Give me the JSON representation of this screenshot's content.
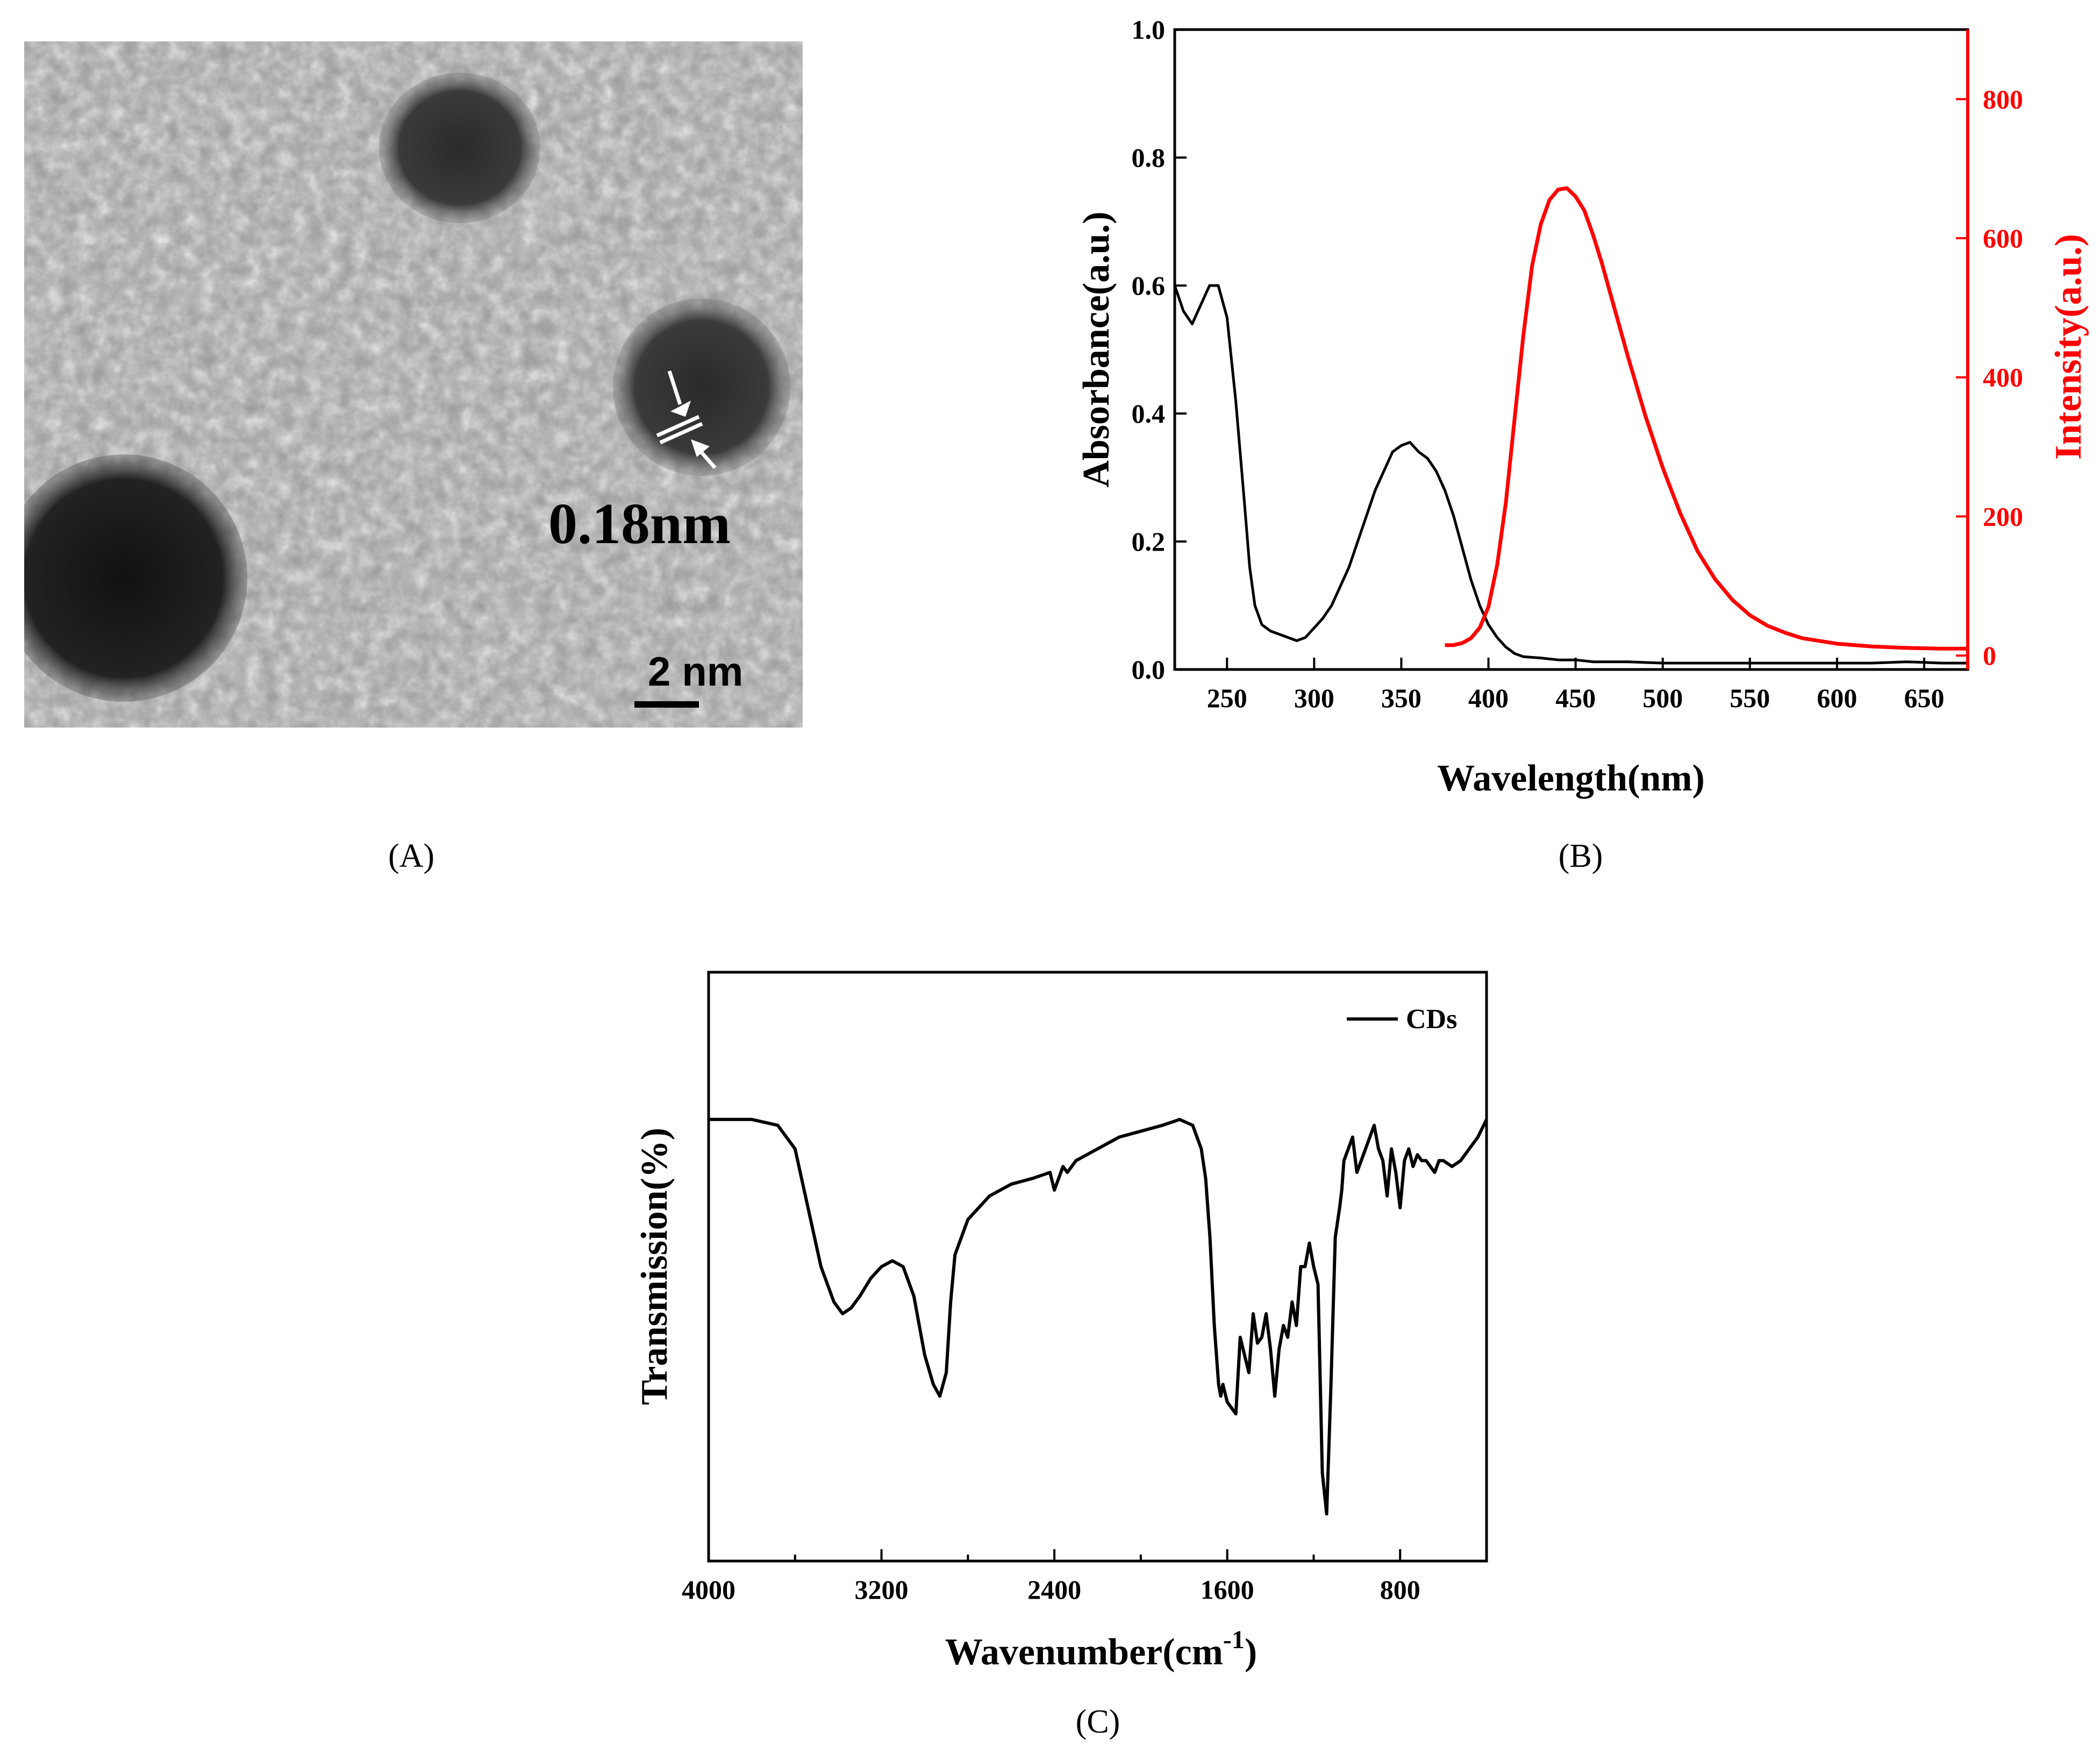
{
  "figure": {
    "panel_labels": [
      "(A)",
      "(B)",
      "(C)"
    ]
  },
  "panel_a": {
    "type": "TEM micrograph",
    "lattice_spacing_label": "0.18nm",
    "scale_bar_label": "2 nm"
  },
  "colors": {
    "absorbance": "#000000",
    "intensity": "#ff0000",
    "ftir": "#000000"
  },
  "chart_data": [
    {
      "id": "B",
      "type": "line",
      "xlabel": "Wavelength(nm)",
      "xlim": [
        220,
        675
      ],
      "x_ticks": [
        250,
        300,
        350,
        400,
        450,
        500,
        550,
        600,
        650
      ],
      "y_left": {
        "label": "Absorbance(a.u.)",
        "lim": [
          0,
          1.0
        ],
        "ticks": [
          "0.0",
          "0.2",
          "0.4",
          "0.6",
          "0.8",
          "1.0"
        ]
      },
      "y_right": {
        "label": "Intensity(a.u.)",
        "lim": [
          -20,
          900
        ],
        "ticks": [
          "0",
          "200",
          "400",
          "600",
          "800"
        ]
      },
      "series": [
        {
          "axis": "left",
          "color": "#000000",
          "x": [
            220,
            225,
            230,
            235,
            240,
            245,
            250,
            255,
            260,
            263,
            266,
            270,
            275,
            280,
            285,
            290,
            295,
            300,
            305,
            310,
            315,
            320,
            325,
            330,
            335,
            340,
            345,
            350,
            355,
            360,
            365,
            370,
            375,
            380,
            385,
            390,
            395,
            400,
            405,
            410,
            415,
            420,
            430,
            440,
            450,
            460,
            470,
            480,
            500,
            520,
            540,
            560,
            580,
            600,
            620,
            640,
            660,
            675
          ],
          "y": [
            0.6,
            0.56,
            0.54,
            0.57,
            0.6,
            0.6,
            0.55,
            0.42,
            0.26,
            0.16,
            0.1,
            0.07,
            0.06,
            0.055,
            0.05,
            0.045,
            0.05,
            0.065,
            0.08,
            0.1,
            0.13,
            0.16,
            0.2,
            0.24,
            0.28,
            0.31,
            0.34,
            0.35,
            0.355,
            0.34,
            0.33,
            0.31,
            0.28,
            0.24,
            0.19,
            0.14,
            0.1,
            0.07,
            0.05,
            0.035,
            0.025,
            0.02,
            0.018,
            0.015,
            0.015,
            0.012,
            0.012,
            0.012,
            0.01,
            0.01,
            0.01,
            0.01,
            0.01,
            0.01,
            0.01,
            0.012,
            0.01,
            0.01
          ]
        },
        {
          "axis": "right",
          "color": "#ff0000",
          "x": [
            375,
            380,
            385,
            390,
            395,
            400,
            405,
            410,
            415,
            420,
            425,
            430,
            435,
            440,
            445,
            450,
            455,
            460,
            465,
            470,
            480,
            490,
            500,
            510,
            520,
            530,
            540,
            550,
            560,
            570,
            580,
            600,
            620,
            640,
            660,
            675
          ],
          "y": [
            15,
            15,
            18,
            25,
            40,
            70,
            130,
            220,
            340,
            460,
            560,
            620,
            655,
            670,
            672,
            660,
            640,
            605,
            565,
            520,
            430,
            345,
            270,
            205,
            150,
            110,
            80,
            58,
            43,
            33,
            25,
            17,
            13,
            11,
            10,
            10
          ]
        }
      ]
    },
    {
      "id": "C",
      "type": "line",
      "xlabel": "Wavenumber(cm",
      "xlabel_sup": "-1",
      "xlabel_close": ")",
      "ylabel": "Transmission(%)",
      "xlim": [
        4000,
        400
      ],
      "x_ticks": [
        "4000",
        "3200",
        "2400",
        "1600",
        "800"
      ],
      "ylim": [
        0,
        100
      ],
      "legend": {
        "position": "top-right",
        "entries": [
          "CDs"
        ]
      },
      "series": [
        {
          "name": "CDs",
          "color": "#000000",
          "x": [
            4000,
            3800,
            3680,
            3600,
            3540,
            3480,
            3420,
            3380,
            3340,
            3300,
            3250,
            3200,
            3150,
            3100,
            3050,
            3000,
            2960,
            2930,
            2900,
            2880,
            2860,
            2800,
            2700,
            2600,
            2500,
            2420,
            2400,
            2360,
            2340,
            2300,
            2200,
            2100,
            2000,
            1900,
            1820,
            1760,
            1720,
            1700,
            1680,
            1660,
            1640,
            1630,
            1620,
            1600,
            1580,
            1560,
            1540,
            1520,
            1500,
            1480,
            1460,
            1440,
            1420,
            1400,
            1380,
            1360,
            1340,
            1320,
            1300,
            1280,
            1260,
            1240,
            1220,
            1200,
            1180,
            1160,
            1140,
            1120,
            1100,
            1080,
            1070,
            1060,
            1040,
            1020,
            1000,
            980,
            960,
            940,
            920,
            900,
            880,
            860,
            840,
            820,
            800,
            780,
            760,
            740,
            720,
            700,
            680,
            660,
            640,
            620,
            600,
            560,
            520,
            480,
            440,
            400
          ],
          "y": [
            75,
            75,
            74,
            70,
            60,
            50,
            44,
            42,
            43,
            45,
            48,
            50,
            51,
            50,
            45,
            35,
            30,
            28,
            32,
            44,
            52,
            58,
            62,
            64,
            65,
            66,
            63,
            67,
            66,
            68,
            70,
            72,
            73,
            74,
            75,
            74,
            70,
            65,
            55,
            40,
            30,
            28,
            30,
            27,
            26,
            25,
            38,
            35,
            32,
            42,
            37,
            38,
            42,
            36,
            28,
            36,
            40,
            38,
            44,
            40,
            50,
            50,
            54,
            50,
            47,
            15,
            8,
            30,
            55,
            60,
            63,
            68,
            70,
            72,
            66,
            68,
            70,
            72,
            74,
            70,
            68,
            62,
            70,
            66,
            60,
            68,
            70,
            67,
            69,
            68,
            68,
            67,
            66,
            68,
            68,
            67,
            68,
            70,
            72,
            75
          ]
        }
      ]
    }
  ]
}
